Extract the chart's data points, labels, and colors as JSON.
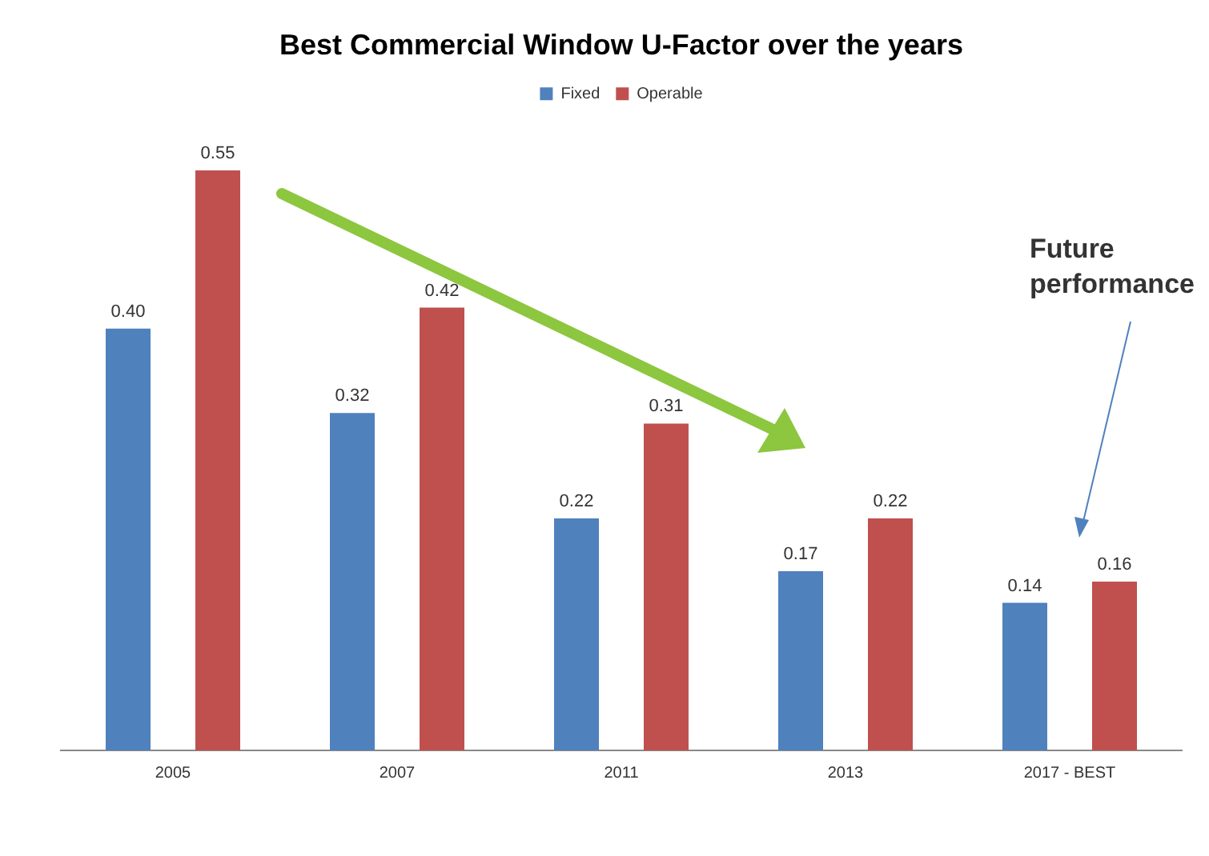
{
  "chart_data": {
    "type": "bar",
    "title": "Best Commercial Window U-Factor over the years",
    "categories": [
      "2005",
      "2007",
      "2011",
      "2013",
      "2017 - BEST"
    ],
    "series": [
      {
        "name": "Fixed",
        "color": "#4f81bd",
        "values": [
          0.4,
          0.32,
          0.22,
          0.17,
          0.14
        ],
        "value_labels": [
          "0.40",
          "0.32",
          "0.22",
          "0.17",
          "0.14"
        ]
      },
      {
        "name": "Operable",
        "color": "#c0504d",
        "values": [
          0.55,
          0.42,
          0.31,
          0.22,
          0.16
        ],
        "value_labels": [
          "0.55",
          "0.42",
          "0.31",
          "0.22",
          "0.16"
        ]
      }
    ],
    "legend": "top",
    "annotations": [
      "Future performance"
    ]
  }
}
